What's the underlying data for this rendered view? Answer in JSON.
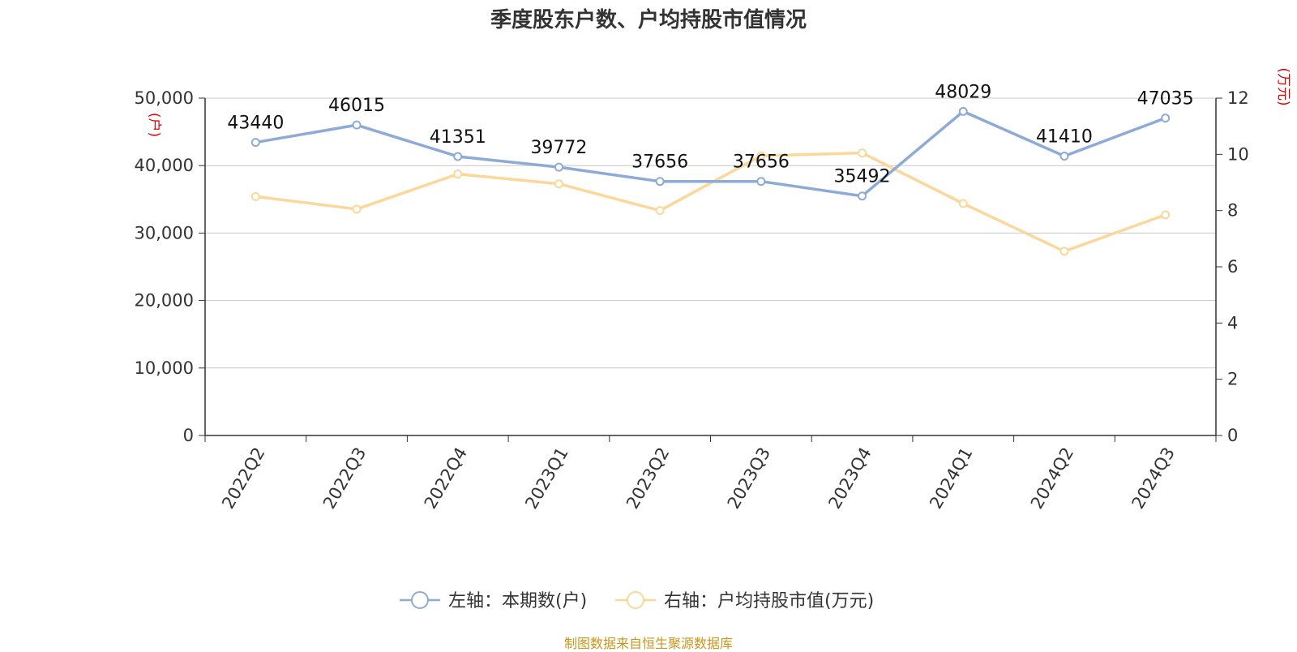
{
  "chart_data": {
    "type": "line",
    "title": "季度股东户数、户均持股市值情况",
    "categories": [
      "2022Q2",
      "2022Q3",
      "2022Q4",
      "2023Q1",
      "2023Q2",
      "2023Q3",
      "2023Q4",
      "2024Q1",
      "2024Q2",
      "2024Q3"
    ],
    "left_axis": {
      "unit": "(户)",
      "range": [
        0,
        50000
      ],
      "ticks": [
        0,
        10000,
        20000,
        30000,
        40000,
        50000
      ],
      "tick_labels": [
        "0",
        "10,000",
        "20,000",
        "30,000",
        "40,000",
        "50,000"
      ]
    },
    "right_axis": {
      "unit": "(万元)",
      "range": [
        0,
        12
      ],
      "ticks": [
        0,
        2,
        4,
        6,
        8,
        10,
        12
      ],
      "tick_labels": [
        "0",
        "2",
        "4",
        "6",
        "8",
        "10",
        "12"
      ]
    },
    "series": [
      {
        "name": "左轴：本期数(户)",
        "axis": "left",
        "color": "#8eaad6",
        "values": [
          43440,
          46015,
          41351,
          39772,
          37656,
          37656,
          35492,
          48029,
          41410,
          47035
        ],
        "labels": [
          "43440",
          "46015",
          "41351",
          "39772",
          "37656",
          "37656",
          "35492",
          "48029",
          "41410",
          "47035"
        ]
      },
      {
        "name": "右轴：户均持股市值(万元)",
        "axis": "right",
        "color": "#fbd899",
        "values": [
          8.5,
          8.05,
          9.3,
          8.95,
          8.0,
          9.95,
          10.05,
          8.25,
          6.55,
          7.85
        ]
      }
    ],
    "grid": true,
    "legend_position": "bottom"
  },
  "source": "制图数据来自恒生聚源数据库"
}
